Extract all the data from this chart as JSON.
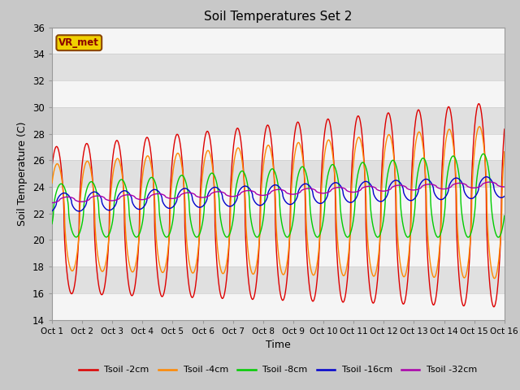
{
  "title": "Soil Temperatures Set 2",
  "xlabel": "Time",
  "ylabel": "Soil Temperature (C)",
  "ylim": [
    14,
    36
  ],
  "xlim": [
    0,
    15
  ],
  "xtick_labels": [
    "Oct 1",
    "Oct 2",
    "Oct 3",
    "Oct 4",
    "Oct 5",
    "Oct 6",
    "Oct 7",
    "Oct 8",
    "Oct 9",
    "Oct 10",
    "Oct 11",
    "Oct 12",
    "Oct 13",
    "Oct 14",
    "Oct 15",
    "Oct 16"
  ],
  "ytick_values": [
    14,
    16,
    18,
    20,
    22,
    24,
    26,
    28,
    30,
    32,
    34,
    36
  ],
  "annotation_text": "VR_met",
  "series": [
    {
      "label": "Tsoil -2cm",
      "color": "#dd0000"
    },
    {
      "label": "Tsoil -4cm",
      "color": "#ff8800"
    },
    {
      "label": "Tsoil -8cm",
      "color": "#00cc00"
    },
    {
      "label": "Tsoil -16cm",
      "color": "#0000cc"
    },
    {
      "label": "Tsoil -32cm",
      "color": "#aa00aa"
    }
  ],
  "bg_light": "#f0f0f0",
  "bg_dark": "#dcdcdc",
  "fig_bg": "#c8c8c8"
}
